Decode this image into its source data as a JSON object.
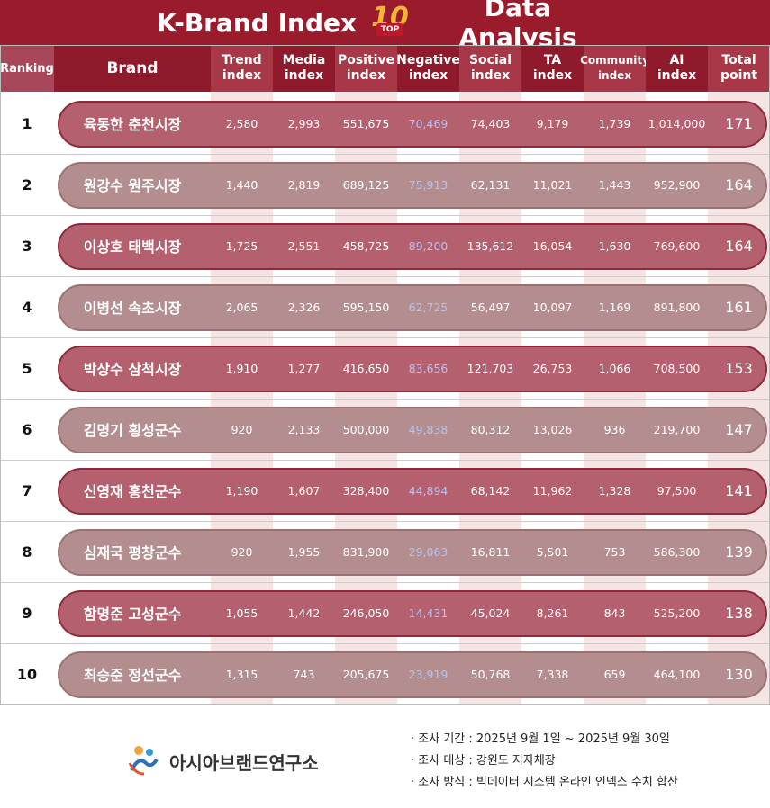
{
  "header": {
    "title_left": "K-Brand Index",
    "badge_number": "10",
    "badge_label": "TOP",
    "title_right": "Data Analysis"
  },
  "table": {
    "headers": [
      [
        "Ranking"
      ],
      [
        "Brand"
      ],
      [
        "Trend",
        "index"
      ],
      [
        "Media",
        "index"
      ],
      [
        "Positive",
        "index"
      ],
      [
        "Negative",
        "index"
      ],
      [
        "Social",
        "index"
      ],
      [
        "TA",
        "index"
      ],
      [
        "Community",
        "index"
      ],
      [
        "AI",
        "index"
      ],
      [
        "Total",
        "point"
      ]
    ],
    "rows": [
      [
        "1",
        "육동한 춘천시장",
        "2,580",
        "2,993",
        "551,675",
        "70,469",
        "74,403",
        "9,179",
        "1,739",
        "1,014,000",
        "171"
      ],
      [
        "2",
        "원강수 원주시장",
        "1,440",
        "2,819",
        "689,125",
        "75,913",
        "62,131",
        "11,021",
        "1,443",
        "952,900",
        "164"
      ],
      [
        "3",
        "이상호 태백시장",
        "1,725",
        "2,551",
        "458,725",
        "89,200",
        "135,612",
        "16,054",
        "1,630",
        "769,600",
        "164"
      ],
      [
        "4",
        "이병선 속초시장",
        "2,065",
        "2,326",
        "595,150",
        "62,725",
        "56,497",
        "10,097",
        "1,169",
        "891,800",
        "161"
      ],
      [
        "5",
        "박상수 삼척시장",
        "1,910",
        "1,277",
        "416,650",
        "83,656",
        "121,703",
        "26,753",
        "1,066",
        "708,500",
        "153"
      ],
      [
        "6",
        "김명기 횡성군수",
        "920",
        "2,133",
        "500,000",
        "49,838",
        "80,312",
        "13,026",
        "936",
        "219,700",
        "147"
      ],
      [
        "7",
        "신영재 홍천군수",
        "1,190",
        "1,607",
        "328,400",
        "44,894",
        "68,142",
        "11,962",
        "1,328",
        "97,500",
        "141"
      ],
      [
        "8",
        "심재국 평창군수",
        "920",
        "1,955",
        "831,900",
        "29,063",
        "16,811",
        "5,501",
        "753",
        "586,300",
        "139"
      ],
      [
        "9",
        "함명준 고성군수",
        "1,055",
        "1,442",
        "246,050",
        "14,431",
        "45,024",
        "8,261",
        "843",
        "525,200",
        "138"
      ],
      [
        "10",
        "최승준 정선군수",
        "1,315",
        "743",
        "205,675",
        "23,919",
        "50,768",
        "7,338",
        "659",
        "464,100",
        "130"
      ]
    ]
  },
  "footer": {
    "organization": "아시아브랜드연구소",
    "notes": [
      "· 조사 기간 : 2025년 9월 1일 ~ 2025년 9월 30일",
      "· 조사 대상 : 강원도 지자체장",
      "· 조사 방식 : 빅데이터 시스템 온라인 인덱스 수치 합산"
    ]
  }
}
